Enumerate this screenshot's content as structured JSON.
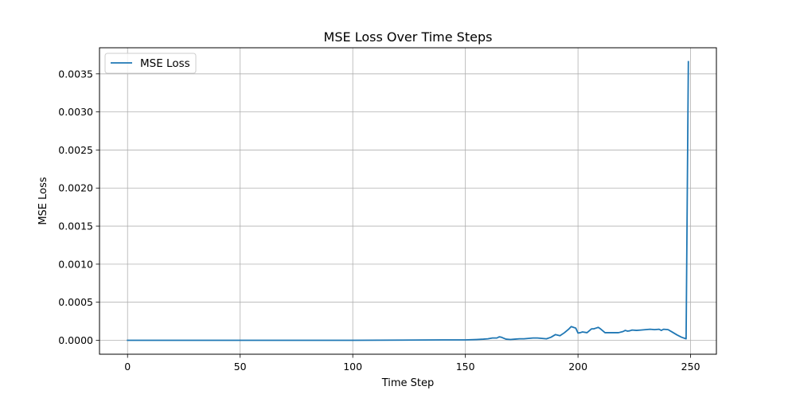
{
  "chart_data": {
    "type": "line",
    "title": "MSE Loss Over Time Steps",
    "xlabel": "Time Step",
    "ylabel": "MSE Loss",
    "xlim": [
      -12.45,
      261.45
    ],
    "ylim": [
      -0.000183,
      0.003843
    ],
    "xticks": [
      0,
      50,
      100,
      150,
      200,
      250
    ],
    "yticks": [
      0.0,
      0.0005,
      0.001,
      0.0015,
      0.002,
      0.0025,
      0.003,
      0.0035
    ],
    "ytick_labels": [
      "0.0000",
      "0.0005",
      "0.0010",
      "0.0015",
      "0.0020",
      "0.0025",
      "0.0030",
      "0.0035"
    ],
    "grid": true,
    "legend": "top-left",
    "series": [
      {
        "name": "MSE Loss",
        "color": "#1f77b4",
        "x": [
          0,
          50,
          100,
          140,
          150,
          155,
          158,
          160,
          162,
          164,
          165,
          166,
          168,
          170,
          172,
          174,
          176,
          178,
          180,
          182,
          184,
          186,
          188,
          190,
          192,
          194,
          196,
          197,
          198,
          199,
          200,
          201,
          202,
          204,
          206,
          207,
          208,
          209,
          210,
          212,
          214,
          216,
          218,
          220,
          221,
          222,
          223,
          224,
          226,
          228,
          230,
          232,
          234,
          236,
          237,
          238,
          240,
          242,
          244,
          246,
          248,
          249
        ],
        "values": [
          0.0,
          0.0,
          0.0,
          5e-06,
          5e-06,
          1e-05,
          1.5e-05,
          2e-05,
          3e-05,
          3e-05,
          4.5e-05,
          4e-05,
          1.5e-05,
          1e-05,
          1.5e-05,
          2e-05,
          2e-05,
          2.5e-05,
          3e-05,
          3e-05,
          2.5e-05,
          2e-05,
          4e-05,
          7.5e-05,
          6e-05,
          0.0001,
          0.00015,
          0.00018,
          0.00017,
          0.00016,
          9.5e-05,
          0.0001,
          0.00011,
          0.0001,
          0.00015,
          0.00015,
          0.00016,
          0.00017,
          0.00015,
          0.0001,
          0.0001,
          0.0001,
          0.0001,
          0.000115,
          0.00013,
          0.00012,
          0.000125,
          0.000135,
          0.00013,
          0.000135,
          0.00014,
          0.000145,
          0.00014,
          0.000145,
          0.00013,
          0.000145,
          0.00014,
          0.000105,
          7e-05,
          4e-05,
          2e-05,
          0.00366
        ]
      }
    ]
  }
}
